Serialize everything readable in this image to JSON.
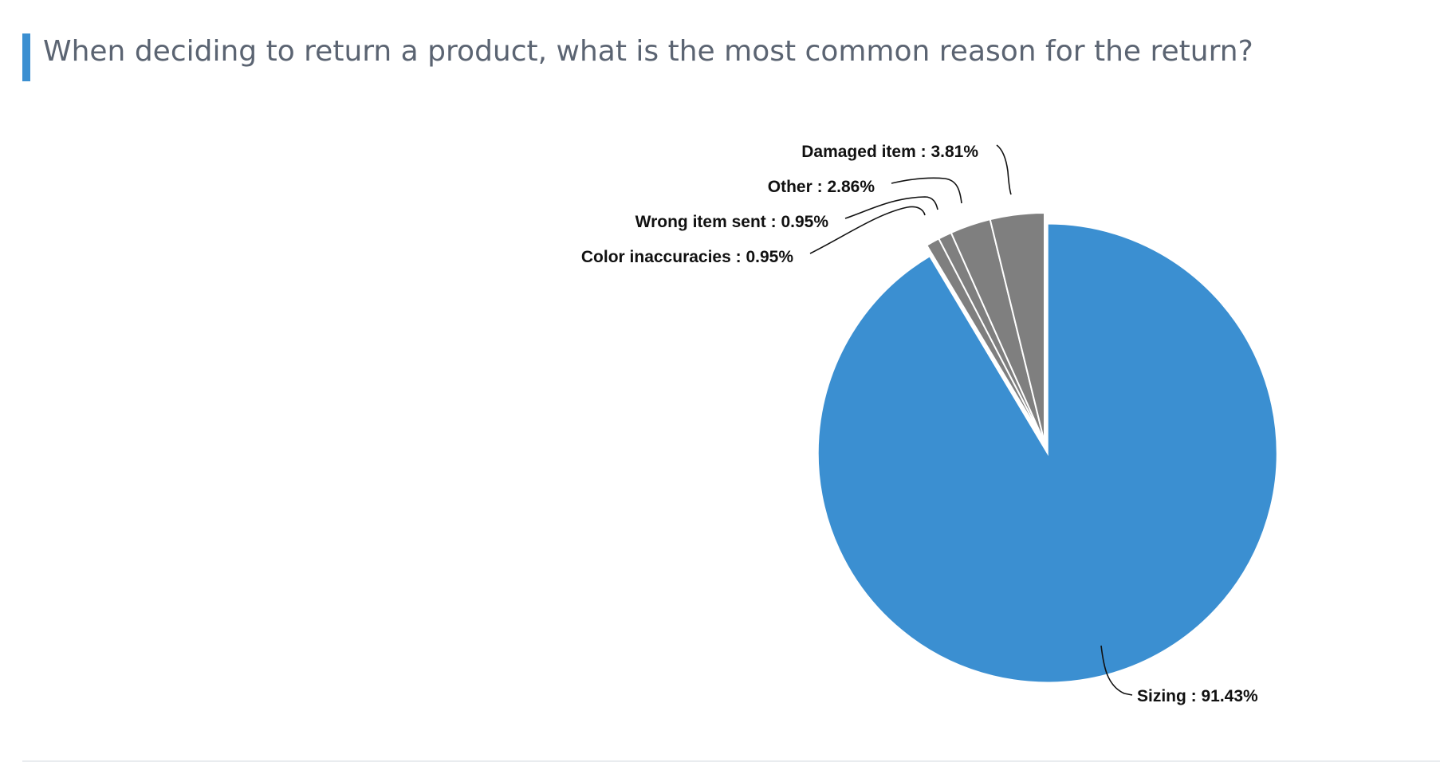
{
  "title": "When deciding to return a product, what is the most common reason for the return?",
  "colors": {
    "accent": "#3b8fd1",
    "other": "#7f7f7f"
  },
  "chart_data": {
    "type": "pie",
    "title": "When deciding to return a product, what is the most common reason for the return?",
    "categories": [
      "Sizing",
      "Color inaccuracies",
      "Wrong item sent",
      "Other",
      "Damaged item"
    ],
    "values": [
      91.43,
      0.95,
      0.95,
      2.86,
      3.81
    ],
    "labels": [
      "Sizing : 91.43%",
      "Color inaccuracies : 0.95%",
      "Wrong item sent : 0.95%",
      "Other : 2.86%",
      "Damaged item : 3.81%"
    ],
    "colors": [
      "#3b8fd1",
      "#7f7f7f",
      "#7f7f7f",
      "#7f7f7f",
      "#7f7f7f"
    ],
    "exploded": [
      "Sizing"
    ],
    "legend": "none"
  }
}
